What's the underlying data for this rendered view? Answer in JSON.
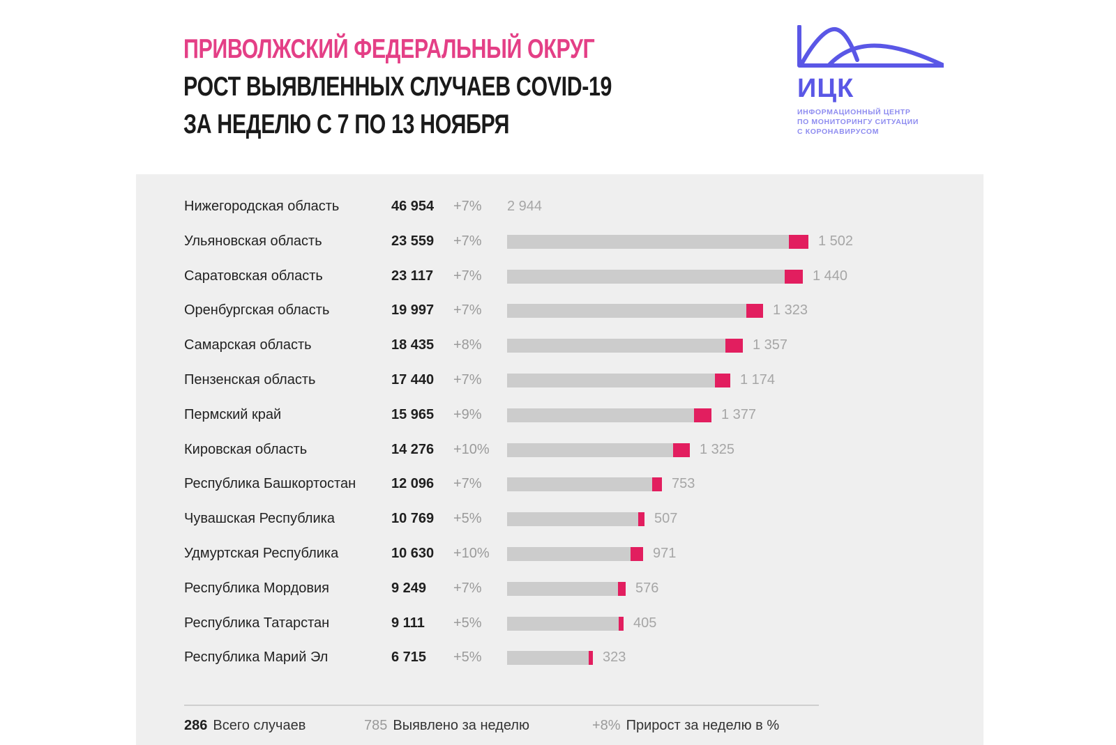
{
  "header": {
    "line1": "ПРИВОЛЖСКИЙ ФЕДЕРАЛЬНЫЙ ОКРУГ",
    "line2": "РОСТ ВЫЯВЛЕННЫХ СЛУЧАЕВ COVID-19",
    "line3": "ЗА НЕДЕЛЮ С 7 ПО 13 НОЯБРЯ"
  },
  "logo": {
    "name": "ИЦК",
    "caption1": "ИНФОРМАЦИОННЫЙ ЦЕНТР",
    "caption2": "ПО МОНИТОРИНГУ СИТУАЦИИ",
    "caption3": "С КОРОНАВИРУСОМ",
    "color": "#5a57e6"
  },
  "colors": {
    "accent": "#e43f86",
    "new_cases": "#e21e5f",
    "bar_base": "#cccccc",
    "panel": "#efefef"
  },
  "chart_data": {
    "type": "bar",
    "orientation": "horizontal",
    "stacked": true,
    "categories": [
      "Нижегородская область",
      "Ульяновская область",
      "Саратовская область",
      "Оренбургская область",
      "Самарская область",
      "Пензенская область",
      "Пермский край",
      "Кировская область",
      "Республика Башкортостан",
      "Чувашская Республика",
      "Удмуртская Республика",
      "Республика Мордовия",
      "Республика Татарстан",
      "Республика Марий Эл"
    ],
    "total_labels": [
      "46 954",
      "23 559",
      "23 117",
      "19 997",
      "18 435",
      "17 440",
      "15 965",
      "14 276",
      "12 096",
      "10 769",
      "10 630",
      "9 249",
      "9 111",
      "6 715"
    ],
    "totals": [
      46954,
      23559,
      23117,
      19997,
      18435,
      17440,
      15965,
      14276,
      12096,
      10769,
      10630,
      9249,
      9111,
      6715
    ],
    "growth_pct": [
      "+7%",
      "+7%",
      "+7%",
      "+7%",
      "+8%",
      "+7%",
      "+9%",
      "+10%",
      "+7%",
      "+5%",
      "+10%",
      "+7%",
      "+5%",
      "+5%"
    ],
    "new_week_labels": [
      "2 944",
      "1 502",
      "1 440",
      "1 323",
      "1 357",
      "1 174",
      "1 377",
      "1 325",
      "753",
      "507",
      "971",
      "576",
      "405",
      "323"
    ],
    "new_week": [
      2944,
      1502,
      1440,
      1323,
      1357,
      1174,
      1377,
      1325,
      753,
      507,
      971,
      576,
      405,
      323
    ],
    "show_bar": [
      false,
      true,
      true,
      true,
      true,
      true,
      true,
      true,
      true,
      true,
      true,
      true,
      true,
      true
    ],
    "xlim": [
      0,
      23559
    ],
    "grid": false
  },
  "legend": {
    "total_value": "286",
    "total_label": "Всего случаев",
    "week_value": "785",
    "week_label": "Выявлено за неделю",
    "growth_value": "+8%",
    "growth_label": "Прирост за неделю в %"
  }
}
